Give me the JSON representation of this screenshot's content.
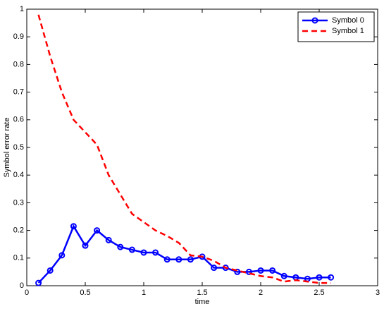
{
  "chart_data": {
    "type": "line",
    "xlabel": "time",
    "ylabel": "Symbol error rate",
    "x": [
      0.1,
      0.2,
      0.3,
      0.4,
      0.5,
      0.6,
      0.7,
      0.8,
      0.9,
      1.0,
      1.1,
      1.2,
      1.3,
      1.4,
      1.5,
      1.6,
      1.7,
      1.8,
      1.9,
      2.0,
      2.1,
      2.2,
      2.3,
      2.4,
      2.5,
      2.6
    ],
    "series": [
      {
        "name": "Symbol 0",
        "color": "#0000ff",
        "dash": "solid",
        "marker": "circle",
        "values": [
          0.01,
          0.055,
          0.11,
          0.215,
          0.145,
          0.2,
          0.165,
          0.14,
          0.13,
          0.12,
          0.12,
          0.095,
          0.095,
          0.095,
          0.105,
          0.065,
          0.065,
          0.05,
          0.05,
          0.055,
          0.055,
          0.035,
          0.03,
          0.025,
          0.03,
          0.03
        ]
      },
      {
        "name": "Symbol 1",
        "color": "#ff0000",
        "dash": "dashed",
        "marker": "none",
        "values": [
          0.98,
          0.83,
          0.7,
          0.6,
          0.555,
          0.51,
          0.4,
          0.33,
          0.26,
          0.23,
          0.2,
          0.18,
          0.155,
          0.11,
          0.105,
          0.09,
          0.065,
          0.055,
          0.045,
          0.035,
          0.03,
          0.015,
          0.02,
          0.015,
          0.01,
          0.01
        ]
      }
    ],
    "xlim": [
      0,
      3
    ],
    "xticks": [
      0,
      0.5,
      1,
      1.5,
      2,
      2.5,
      3
    ],
    "ylim": [
      0,
      1
    ],
    "yticks": [
      0,
      0.1,
      0.2,
      0.3,
      0.4,
      0.5,
      0.6,
      0.7,
      0.8,
      0.9,
      1
    ],
    "grid": false,
    "legend_position": "northeast"
  }
}
